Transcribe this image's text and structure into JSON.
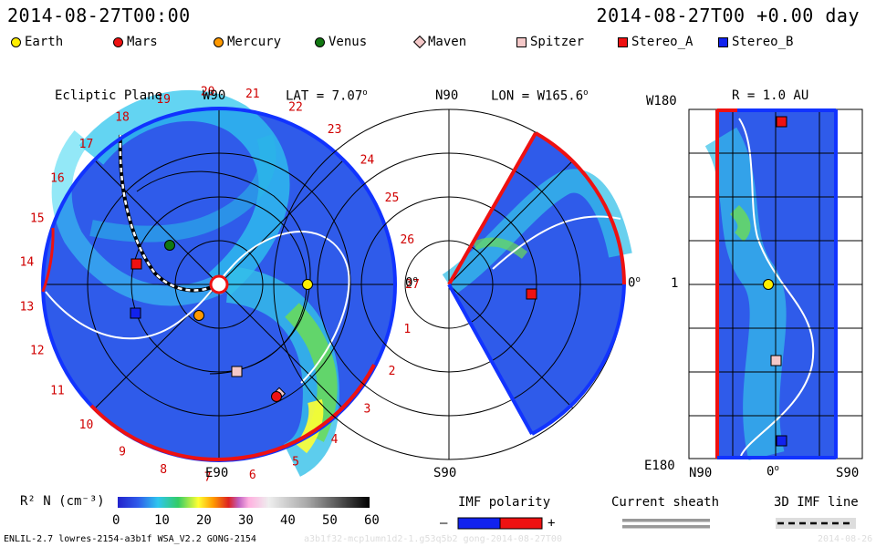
{
  "header": {
    "left_time": "2014-08-27T00:00",
    "right_time": "2014-08-27T00 +0.00 day"
  },
  "legend": [
    {
      "label": "Earth",
      "color": "#ffee00",
      "shape": "circle"
    },
    {
      "label": "Mars",
      "color": "#ee1111",
      "shape": "circle"
    },
    {
      "label": "Mercury",
      "color": "#ff9900",
      "shape": "circle"
    },
    {
      "label": "Venus",
      "color": "#117711",
      "shape": "circle"
    },
    {
      "label": "Maven",
      "color": "#f4c8c8",
      "shape": "diamond"
    },
    {
      "label": "Spitzer",
      "color": "#f4c8c8",
      "shape": "square"
    },
    {
      "label": "Stereo_A",
      "color": "#ee1111",
      "shape": "square"
    },
    {
      "label": "Stereo_B",
      "color": "#1122ee",
      "shape": "square"
    }
  ],
  "panels": {
    "ecliptic": {
      "title": "Ecliptic Plane",
      "top_label": "W90",
      "lat_label": "LAT = 7.07",
      "degree_mark": "o",
      "bottom_label": "E90",
      "right_label": "0",
      "carrington": [
        "1",
        "2",
        "3",
        "4",
        "5",
        "6",
        "7",
        "8",
        "9",
        "10",
        "11",
        "12",
        "13",
        "14",
        "15",
        "16",
        "17",
        "18",
        "19",
        "20",
        "21",
        "22",
        "23",
        "24",
        "25",
        "26",
        "27"
      ]
    },
    "meridional": {
      "top_label": "N90",
      "lon_label": "LON = W165.6",
      "degree_mark": "o",
      "bottom_label": "S90",
      "right_label": "0"
    },
    "radial": {
      "left_top_label": "W180",
      "r_label": "R = 1.0 AU",
      "mid_label": "1",
      "left_bottom_label": "E180",
      "x_left": "N90",
      "x_mid": "0",
      "degree_mark": "o",
      "x_right": "S90"
    }
  },
  "colorbar": {
    "label": "R² N (cm⁻³)",
    "ticks": [
      "0",
      "10",
      "20",
      "30",
      "40",
      "50",
      "60"
    ]
  },
  "imf_legend": {
    "polarity_title": "IMF polarity",
    "minus": "–",
    "plus": "+",
    "sheath_title": "Current sheath",
    "line_title": "3D IMF line"
  },
  "footer": {
    "left": "ENLIL-2.7 lowres-2154-a3b1f WSA_V2.2 GONG-2154",
    "middle": "a3b1f32-mcp1umn1d2-1.g53q5b2 gong-2014-08-27T00",
    "right": "2014-08-26"
  },
  "chart_data": {
    "type": "heatmap",
    "colorscale_range": [
      0,
      60
    ],
    "bodies": [
      {
        "name": "Earth",
        "panel": "ecliptic",
        "r_au": 1.0,
        "lon_deg": 0
      },
      {
        "name": "Mars",
        "panel": "ecliptic"
      },
      {
        "name": "Mercury",
        "panel": "ecliptic"
      },
      {
        "name": "Venus",
        "panel": "ecliptic"
      },
      {
        "name": "Maven",
        "panel": "ecliptic"
      },
      {
        "name": "Spitzer",
        "panel": "ecliptic"
      },
      {
        "name": "Stereo_A",
        "panel": "ecliptic"
      },
      {
        "name": "Stereo_B",
        "panel": "ecliptic"
      }
    ]
  }
}
